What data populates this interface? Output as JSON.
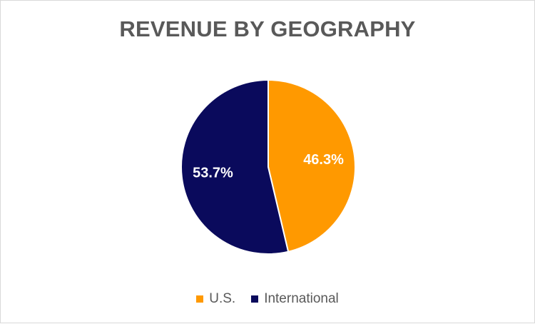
{
  "chart_data": {
    "type": "pie",
    "title": "REVENUE BY GEOGRAPHY",
    "categories": [
      "U.S.",
      "International"
    ],
    "values": [
      46.3,
      53.7
    ],
    "labels": [
      "46.3%",
      "53.7%"
    ],
    "colors": [
      "#FF9900",
      "#0A0A5C"
    ],
    "legend_position": "bottom"
  }
}
